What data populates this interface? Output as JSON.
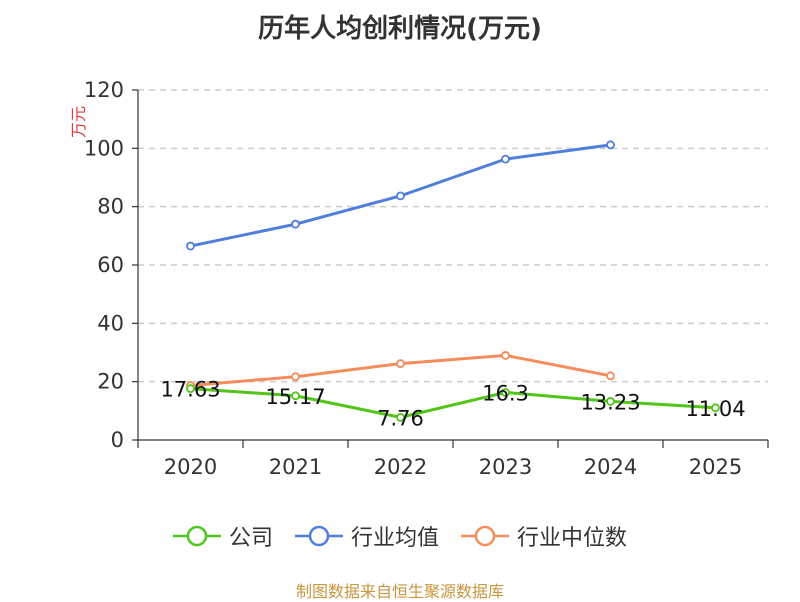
{
  "chart_data": {
    "type": "line",
    "title": "历年人均创利情况(万元)",
    "ylabel": "万元",
    "xlabel": "",
    "categories": [
      "2020",
      "2021",
      "2022",
      "2023",
      "2024",
      "2025"
    ],
    "ylim": [
      0,
      120
    ],
    "yticks": [
      0,
      20,
      40,
      60,
      80,
      100,
      120
    ],
    "grid": true,
    "legend_position": "bottom-center",
    "series": [
      {
        "name": "公司",
        "color": "#52c41a",
        "values": [
          17.63,
          15.17,
          7.76,
          16.3,
          13.23,
          11.04
        ],
        "labels": [
          "17.63",
          "15.17",
          "7.76",
          "16.3",
          "13.23",
          "11.04"
        ]
      },
      {
        "name": "行业均值",
        "color": "#4f7fdb",
        "values": [
          66.5,
          74,
          83.7,
          96.3,
          101.2,
          null
        ],
        "labels": []
      },
      {
        "name": "行业中位数",
        "color": "#f58c5b",
        "values": [
          18.7,
          21.7,
          26.2,
          29,
          22,
          null
        ],
        "labels": []
      }
    ]
  },
  "footer": {
    "source": "制图数据来自恒生聚源数据库"
  }
}
